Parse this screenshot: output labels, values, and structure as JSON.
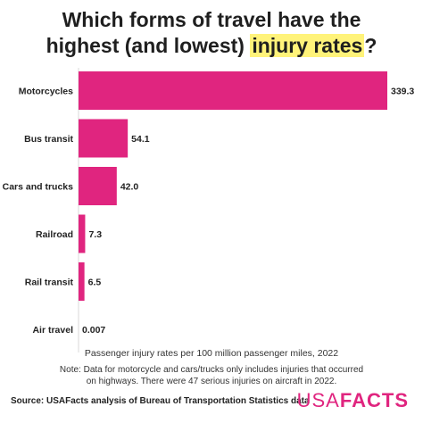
{
  "title": {
    "line1": "Which forms of travel have the",
    "line2_before": "highest (and lowest) ",
    "line2_highlight": "injury rates",
    "line2_after": "?"
  },
  "chart_data": {
    "type": "bar",
    "orientation": "horizontal",
    "categories": [
      "Motorcycles",
      "Bus transit",
      "Cars and trucks",
      "Railroad",
      "Rail transit",
      "Air travel"
    ],
    "values": [
      339.3,
      54.1,
      42.0,
      7.3,
      6.5,
      0.007
    ],
    "value_labels": [
      "339.3",
      "54.1",
      "42.0",
      "7.3",
      "6.5",
      "0.007"
    ],
    "xlabel": "Passenger injury rates per 100 million passenger miles, 2022",
    "xlim": [
      0,
      339.3
    ],
    "bar_color": "#e0257f",
    "grid": false,
    "legend": "none"
  },
  "note": {
    "line1": "Note: Data for motorcycle and cars/trucks only includes injuries that occurred",
    "line2": "on highways. There were 47 serious injuries on aircraft in 2022."
  },
  "source": "Source: USAFacts analysis of Bureau of Transportation Statistics data",
  "logo": {
    "usa": "USA",
    "facts": "FACTS"
  }
}
